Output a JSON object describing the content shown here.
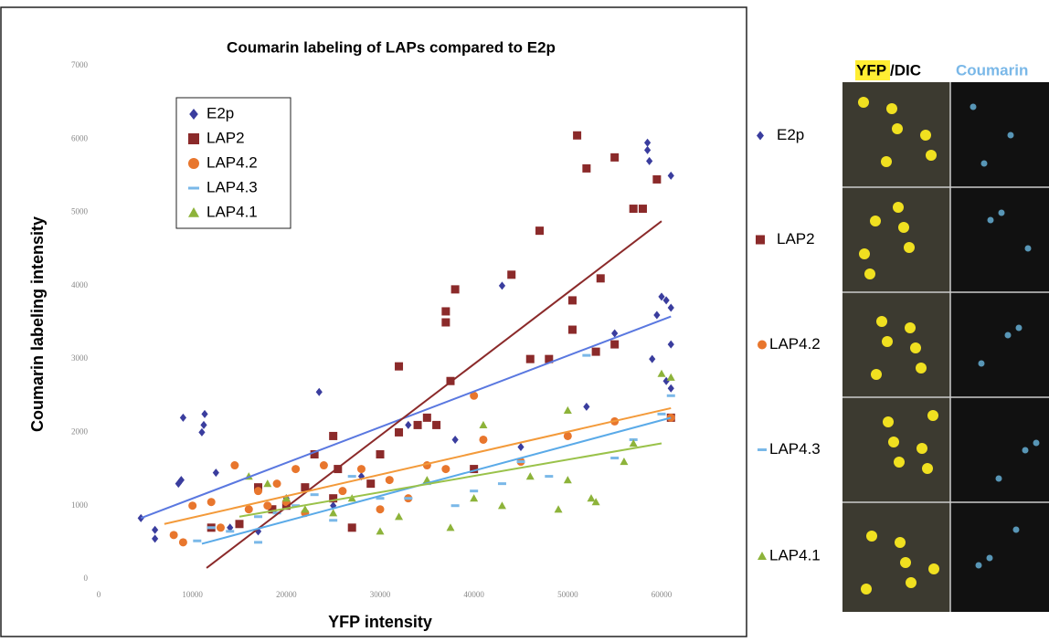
{
  "chart_data": {
    "type": "scatter",
    "title": "Coumarin labeling of LAPs compared to E2p",
    "x_label": "YFP intensity",
    "y_label": "Coumarin labeling intensity",
    "xlim": [
      0,
      60000
    ],
    "ylim": [
      0,
      7000
    ],
    "xticks": [
      0,
      10000,
      20000,
      30000,
      40000,
      50000,
      60000
    ],
    "yticks": [
      0,
      1000,
      2000,
      3000,
      4000,
      5000,
      6000,
      7000
    ],
    "series": [
      {
        "name": "E2p",
        "color": "#3a3d9e",
        "marker": "diamond",
        "trend_color": "#5a78e0",
        "x": [
          4500,
          6000,
          6000,
          8500,
          8800,
          9000,
          11000,
          11200,
          11300,
          12500,
          14000,
          17000,
          20000,
          23500,
          25000,
          28000,
          33000,
          38000,
          43000,
          45000,
          52000,
          55000,
          58500,
          58500,
          58700,
          60000,
          59500,
          60500,
          61000,
          61000,
          61000,
          60500,
          61000,
          59000
        ],
        "values": [
          830,
          550,
          670,
          1300,
          1350,
          2200,
          2000,
          2100,
          2250,
          1450,
          700,
          650,
          1100,
          2550,
          1000,
          1400,
          2100,
          1900,
          4000,
          1800,
          2350,
          3350,
          5950,
          5850,
          5700,
          3850,
          3600,
          3800,
          3700,
          3200,
          5500,
          2700,
          2600,
          3000
        ],
        "trend": {
          "x": [
            4500,
            61000
          ],
          "y": [
            830,
            3580
          ]
        }
      },
      {
        "name": "LAP2",
        "color": "#8b2a2a",
        "marker": "square",
        "trend_color": "#8b2a2a",
        "x": [
          12000,
          15000,
          17000,
          18500,
          20000,
          22000,
          23000,
          25000,
          25500,
          27000,
          29000,
          30000,
          32000,
          34000,
          35000,
          36000,
          37000,
          37000,
          37500,
          38000,
          40000,
          44000,
          46000,
          47000,
          48000,
          50500,
          50500,
          51000,
          52000,
          53000,
          53500,
          55000,
          55000,
          57000,
          58000,
          59500,
          61000,
          25000,
          32000
        ],
        "values": [
          700,
          750,
          1250,
          950,
          1000,
          1250,
          1700,
          1950,
          1500,
          700,
          1300,
          1700,
          2900,
          2100,
          2200,
          2100,
          3500,
          3650,
          2700,
          3950,
          1500,
          4150,
          3000,
          4750,
          3000,
          3800,
          3400,
          6050,
          5600,
          3100,
          4100,
          5750,
          3200,
          5050,
          5050,
          5450,
          2200,
          1100,
          2000
        ],
        "trend": {
          "x": [
            11500,
            60000
          ],
          "y": [
            150,
            4880
          ]
        }
      },
      {
        "name": "LAP4.2",
        "color": "#e8762d",
        "marker": "circle",
        "trend_color": "#f39a3a",
        "x": [
          8000,
          9000,
          10000,
          12000,
          13000,
          14500,
          16000,
          17000,
          18000,
          19000,
          20000,
          21000,
          22000,
          24000,
          26000,
          28000,
          30000,
          31000,
          33000,
          35000,
          37000,
          40000,
          41000,
          45000,
          50000,
          55000,
          61000
        ],
        "values": [
          600,
          500,
          1000,
          1050,
          700,
          1550,
          950,
          1200,
          1000,
          1300,
          1050,
          1500,
          900,
          1550,
          1200,
          1500,
          950,
          1350,
          1100,
          1550,
          1500,
          2500,
          1900,
          1600,
          1950,
          2150,
          2200
        ],
        "trend": {
          "x": [
            7000,
            61000
          ],
          "y": [
            750,
            2330
          ]
        }
      },
      {
        "name": "LAP4.3",
        "color": "#7ab8e8",
        "marker": "dash",
        "trend_color": "#5aaae8",
        "x": [
          10500,
          12000,
          14000,
          17000,
          19000,
          21000,
          23000,
          25000,
          27000,
          30000,
          33000,
          35000,
          38000,
          40000,
          43000,
          45000,
          48000,
          52000,
          55000,
          57000,
          60000,
          61000,
          17000
        ],
        "values": [
          520,
          700,
          650,
          850,
          900,
          1000,
          1150,
          800,
          1400,
          1100,
          1100,
          1300,
          1000,
          1200,
          1300,
          1600,
          1400,
          3050,
          1650,
          1900,
          2250,
          2500,
          500
        ],
        "trend": {
          "x": [
            11000,
            61000
          ],
          "y": [
            480,
            2200
          ]
        }
      },
      {
        "name": "LAP4.1",
        "color": "#8db33a",
        "marker": "triangle",
        "trend_color": "#9ac24a",
        "x": [
          16000,
          18000,
          20000,
          22000,
          25000,
          27000,
          30000,
          32000,
          35000,
          37500,
          40000,
          41000,
          43000,
          46000,
          49000,
          50000,
          50000,
          52500,
          53000,
          56000,
          57000,
          60000,
          61000
        ],
        "values": [
          1400,
          1300,
          1100,
          950,
          900,
          1100,
          650,
          850,
          1350,
          700,
          1100,
          2100,
          1000,
          1400,
          950,
          1350,
          2300,
          1100,
          1050,
          1600,
          1850,
          2800,
          2750
        ],
        "trend": {
          "x": [
            15000,
            60000
          ],
          "y": [
            850,
            1850
          ]
        }
      }
    ]
  },
  "panel": {
    "header_yfp": "YFP",
    "header_dic": "/DIC",
    "header_coumarin": "Coumarin",
    "rows": [
      "E2p",
      "LAP2",
      "LAP4.2",
      "LAP4.3",
      "LAP4.1"
    ]
  }
}
